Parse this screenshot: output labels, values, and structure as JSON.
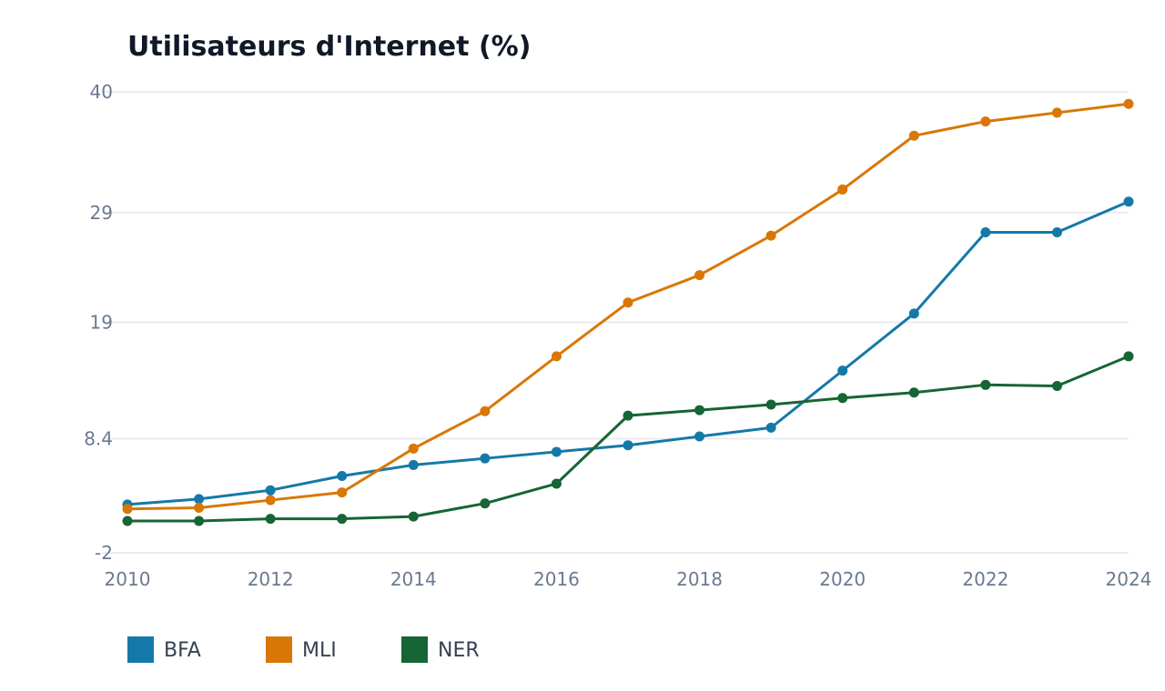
{
  "chart_data": {
    "type": "line",
    "title": "Utilisateurs d'Internet (%)",
    "xlabel": "",
    "ylabel": "",
    "x": [
      2010,
      2011,
      2012,
      2013,
      2014,
      2015,
      2016,
      2017,
      2018,
      2019,
      2020,
      2021,
      2022,
      2023,
      2024
    ],
    "x_ticks": [
      "2010",
      "2012",
      "2014",
      "2016",
      "2018",
      "2020",
      "2022",
      "2024"
    ],
    "y_ticks": [
      "40",
      "29",
      "19",
      "8.4",
      "-2"
    ],
    "ylim": [
      -2,
      40
    ],
    "grid": true,
    "legend_position": "bottom-left",
    "series": [
      {
        "name": "BFA",
        "color": "#1479a8",
        "values": [
          2.4,
          2.9,
          3.7,
          5.0,
          6.0,
          6.6,
          7.2,
          7.8,
          8.6,
          9.4,
          14.6,
          19.8,
          27.2,
          27.2,
          30.0
        ]
      },
      {
        "name": "MLI",
        "color": "#d97706",
        "values": [
          2.0,
          2.1,
          2.8,
          3.5,
          7.5,
          10.9,
          15.9,
          20.8,
          23.3,
          26.9,
          31.1,
          36.0,
          37.3,
          38.1,
          38.9
        ]
      },
      {
        "name": "NER",
        "color": "#166534",
        "values": [
          0.9,
          0.9,
          1.1,
          1.1,
          1.3,
          2.5,
          4.3,
          10.5,
          11.0,
          11.5,
          12.1,
          12.6,
          13.3,
          13.2,
          15.9
        ]
      }
    ]
  }
}
